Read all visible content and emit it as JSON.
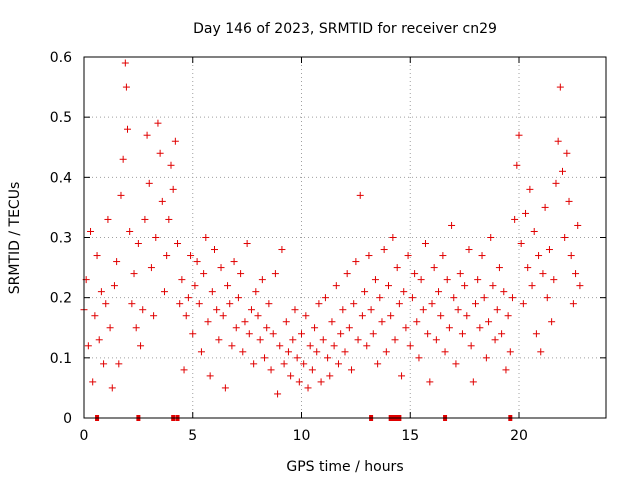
{
  "chart_data": {
    "type": "scatter",
    "title": "Day 146 of 2023, SRMTID for receiver cn29",
    "xlabel": "GPS time / hours",
    "ylabel": "SRMTID / TECUs",
    "xlim": [
      0,
      24
    ],
    "ylim": [
      0,
      0.6
    ],
    "xticks": [
      0,
      5,
      10,
      15,
      20
    ],
    "xtick_labels": [
      "0",
      "5",
      "10",
      "15",
      "20"
    ],
    "yticks": [
      0,
      0.1,
      0.2,
      0.3,
      0.4,
      0.5,
      0.6
    ],
    "ytick_labels": [
      "0",
      "0.1",
      "0.2",
      "0.3",
      "0.4",
      "0.5",
      "0.6"
    ],
    "grid": true,
    "marker": "plus",
    "color": "#e00000",
    "series": [
      {
        "name": "SRMTID",
        "points": [
          [
            0.0,
            0.18
          ],
          [
            0.1,
            0.23
          ],
          [
            0.2,
            0.12
          ],
          [
            0.3,
            0.31
          ],
          [
            0.4,
            0.06
          ],
          [
            0.5,
            0.17
          ],
          [
            0.6,
            0.27
          ],
          [
            0.7,
            0.13
          ],
          [
            0.8,
            0.21
          ],
          [
            0.9,
            0.09
          ],
          [
            1.0,
            0.19
          ],
          [
            1.1,
            0.33
          ],
          [
            1.2,
            0.15
          ],
          [
            1.3,
            0.05
          ],
          [
            1.4,
            0.22
          ],
          [
            1.5,
            0.26
          ],
          [
            1.6,
            0.09
          ],
          [
            1.7,
            0.37
          ],
          [
            1.8,
            0.43
          ],
          [
            1.9,
            0.59
          ],
          [
            1.95,
            0.55
          ],
          [
            2.0,
            0.48
          ],
          [
            2.1,
            0.31
          ],
          [
            2.2,
            0.19
          ],
          [
            2.3,
            0.24
          ],
          [
            2.4,
            0.15
          ],
          [
            2.5,
            0.29
          ],
          [
            2.6,
            0.12
          ],
          [
            2.7,
            0.18
          ],
          [
            2.8,
            0.33
          ],
          [
            2.9,
            0.47
          ],
          [
            3.0,
            0.39
          ],
          [
            3.1,
            0.25
          ],
          [
            3.2,
            0.17
          ],
          [
            3.3,
            0.3
          ],
          [
            3.4,
            0.49
          ],
          [
            3.5,
            0.44
          ],
          [
            3.6,
            0.36
          ],
          [
            3.7,
            0.21
          ],
          [
            3.8,
            0.27
          ],
          [
            3.9,
            0.33
          ],
          [
            4.0,
            0.42
          ],
          [
            4.1,
            0.38
          ],
          [
            4.2,
            0.46
          ],
          [
            4.3,
            0.29
          ],
          [
            4.4,
            0.19
          ],
          [
            4.5,
            0.23
          ],
          [
            4.6,
            0.08
          ],
          [
            4.7,
            0.17
          ],
          [
            4.8,
            0.2
          ],
          [
            4.9,
            0.27
          ],
          [
            5.0,
            0.14
          ],
          [
            5.1,
            0.22
          ],
          [
            5.2,
            0.26
          ],
          [
            5.3,
            0.19
          ],
          [
            5.4,
            0.11
          ],
          [
            5.5,
            0.24
          ],
          [
            5.6,
            0.3
          ],
          [
            5.7,
            0.16
          ],
          [
            5.8,
            0.07
          ],
          [
            5.9,
            0.21
          ],
          [
            6.0,
            0.28
          ],
          [
            6.1,
            0.18
          ],
          [
            6.2,
            0.13
          ],
          [
            6.3,
            0.25
          ],
          [
            6.4,
            0.17
          ],
          [
            6.5,
            0.05
          ],
          [
            6.6,
            0.22
          ],
          [
            6.7,
            0.19
          ],
          [
            6.8,
            0.12
          ],
          [
            6.9,
            0.26
          ],
          [
            7.0,
            0.15
          ],
          [
            7.1,
            0.2
          ],
          [
            7.2,
            0.24
          ],
          [
            7.3,
            0.11
          ],
          [
            7.4,
            0.16
          ],
          [
            7.5,
            0.29
          ],
          [
            7.6,
            0.14
          ],
          [
            7.7,
            0.18
          ],
          [
            7.8,
            0.09
          ],
          [
            7.9,
            0.21
          ],
          [
            8.0,
            0.17
          ],
          [
            8.1,
            0.13
          ],
          [
            8.2,
            0.23
          ],
          [
            8.3,
            0.1
          ],
          [
            8.4,
            0.15
          ],
          [
            8.5,
            0.19
          ],
          [
            8.6,
            0.08
          ],
          [
            8.7,
            0.14
          ],
          [
            8.8,
            0.24
          ],
          [
            8.9,
            0.04
          ],
          [
            9.0,
            0.12
          ],
          [
            9.1,
            0.28
          ],
          [
            9.2,
            0.09
          ],
          [
            9.3,
            0.16
          ],
          [
            9.4,
            0.11
          ],
          [
            9.5,
            0.07
          ],
          [
            9.6,
            0.13
          ],
          [
            9.7,
            0.18
          ],
          [
            9.8,
            0.1
          ],
          [
            9.9,
            0.06
          ],
          [
            10.0,
            0.14
          ],
          [
            10.1,
            0.09
          ],
          [
            10.2,
            0.17
          ],
          [
            10.3,
            0.05
          ],
          [
            10.4,
            0.12
          ],
          [
            10.5,
            0.08
          ],
          [
            10.6,
            0.15
          ],
          [
            10.7,
            0.11
          ],
          [
            10.8,
            0.19
          ],
          [
            10.9,
            0.06
          ],
          [
            11.0,
            0.13
          ],
          [
            11.1,
            0.2
          ],
          [
            11.2,
            0.1
          ],
          [
            11.3,
            0.07
          ],
          [
            11.4,
            0.16
          ],
          [
            11.5,
            0.12
          ],
          [
            11.6,
            0.22
          ],
          [
            11.7,
            0.09
          ],
          [
            11.8,
            0.14
          ],
          [
            11.9,
            0.18
          ],
          [
            12.0,
            0.11
          ],
          [
            12.1,
            0.24
          ],
          [
            12.2,
            0.15
          ],
          [
            12.3,
            0.08
          ],
          [
            12.4,
            0.19
          ],
          [
            12.5,
            0.26
          ],
          [
            12.6,
            0.13
          ],
          [
            12.7,
            0.37
          ],
          [
            12.8,
            0.17
          ],
          [
            12.9,
            0.21
          ],
          [
            13.0,
            0.12
          ],
          [
            13.1,
            0.27
          ],
          [
            13.2,
            0.18
          ],
          [
            13.3,
            0.14
          ],
          [
            13.4,
            0.23
          ],
          [
            13.5,
            0.09
          ],
          [
            13.6,
            0.2
          ],
          [
            13.7,
            0.16
          ],
          [
            13.8,
            0.28
          ],
          [
            13.9,
            0.11
          ],
          [
            14.0,
            0.22
          ],
          [
            14.1,
            0.17
          ],
          [
            14.2,
            0.3
          ],
          [
            14.3,
            0.13
          ],
          [
            14.4,
            0.25
          ],
          [
            14.5,
            0.19
          ],
          [
            14.6,
            0.07
          ],
          [
            14.7,
            0.21
          ],
          [
            14.8,
            0.15
          ],
          [
            14.9,
            0.27
          ],
          [
            15.0,
            0.12
          ],
          [
            15.1,
            0.2
          ],
          [
            15.2,
            0.24
          ],
          [
            15.3,
            0.16
          ],
          [
            15.4,
            0.1
          ],
          [
            15.5,
            0.23
          ],
          [
            15.6,
            0.18
          ],
          [
            15.7,
            0.29
          ],
          [
            15.8,
            0.14
          ],
          [
            15.9,
            0.06
          ],
          [
            16.0,
            0.19
          ],
          [
            16.1,
            0.25
          ],
          [
            16.2,
            0.13
          ],
          [
            16.3,
            0.21
          ],
          [
            16.4,
            0.17
          ],
          [
            16.5,
            0.27
          ],
          [
            16.6,
            0.11
          ],
          [
            16.7,
            0.23
          ],
          [
            16.8,
            0.15
          ],
          [
            16.9,
            0.32
          ],
          [
            17.0,
            0.2
          ],
          [
            17.1,
            0.09
          ],
          [
            17.2,
            0.18
          ],
          [
            17.3,
            0.24
          ],
          [
            17.4,
            0.14
          ],
          [
            17.5,
            0.22
          ],
          [
            17.6,
            0.17
          ],
          [
            17.7,
            0.28
          ],
          [
            17.8,
            0.12
          ],
          [
            17.9,
            0.06
          ],
          [
            18.0,
            0.19
          ],
          [
            18.1,
            0.23
          ],
          [
            18.2,
            0.15
          ],
          [
            18.3,
            0.27
          ],
          [
            18.4,
            0.2
          ],
          [
            18.5,
            0.1
          ],
          [
            18.6,
            0.16
          ],
          [
            18.7,
            0.3
          ],
          [
            18.8,
            0.22
          ],
          [
            18.9,
            0.13
          ],
          [
            19.0,
            0.18
          ],
          [
            19.1,
            0.25
          ],
          [
            19.2,
            0.14
          ],
          [
            19.3,
            0.21
          ],
          [
            19.4,
            0.08
          ],
          [
            19.5,
            0.17
          ],
          [
            19.6,
            0.11
          ],
          [
            19.7,
            0.2
          ],
          [
            19.8,
            0.33
          ],
          [
            19.9,
            0.42
          ],
          [
            20.0,
            0.47
          ],
          [
            20.1,
            0.29
          ],
          [
            20.2,
            0.19
          ],
          [
            20.3,
            0.34
          ],
          [
            20.4,
            0.25
          ],
          [
            20.5,
            0.38
          ],
          [
            20.6,
            0.22
          ],
          [
            20.7,
            0.31
          ],
          [
            20.8,
            0.14
          ],
          [
            20.9,
            0.27
          ],
          [
            21.0,
            0.11
          ],
          [
            21.1,
            0.24
          ],
          [
            21.2,
            0.35
          ],
          [
            21.3,
            0.2
          ],
          [
            21.4,
            0.28
          ],
          [
            21.5,
            0.16
          ],
          [
            21.6,
            0.23
          ],
          [
            21.7,
            0.39
          ],
          [
            21.8,
            0.46
          ],
          [
            21.9,
            0.55
          ],
          [
            22.0,
            0.41
          ],
          [
            22.1,
            0.3
          ],
          [
            22.2,
            0.44
          ],
          [
            22.3,
            0.36
          ],
          [
            22.4,
            0.27
          ],
          [
            22.5,
            0.19
          ],
          [
            22.6,
            0.24
          ],
          [
            22.7,
            0.32
          ],
          [
            22.8,
            0.22
          ]
        ]
      }
    ],
    "gap_markers_x": [
      0.6,
      2.5,
      4.1,
      4.3,
      13.2,
      14.1,
      14.2,
      14.3,
      14.4,
      14.5,
      16.6,
      19.6
    ]
  }
}
